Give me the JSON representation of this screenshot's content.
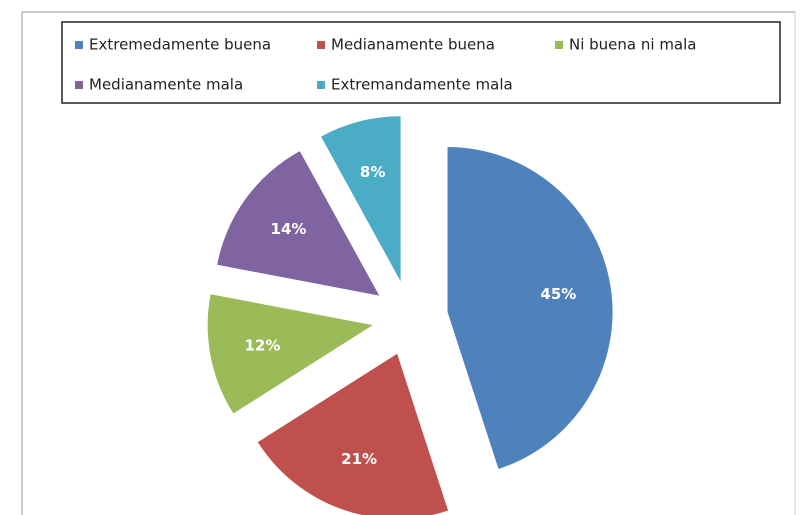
{
  "chart_data": {
    "type": "pie",
    "categories": [
      "Extremedamente buena",
      "Medianamente buena",
      "Ni buena ni mala",
      "Medianamente mala",
      "Extremandamente mala"
    ],
    "values": [
      45,
      21,
      12,
      14,
      8
    ],
    "value_labels": [
      "45%",
      "21%",
      "12%",
      "14%",
      "8%"
    ],
    "colors": [
      "#4f81bd",
      "#c0504d",
      "#9bbb59",
      "#8064a2",
      "#4bacc6"
    ],
    "legend": "top"
  }
}
